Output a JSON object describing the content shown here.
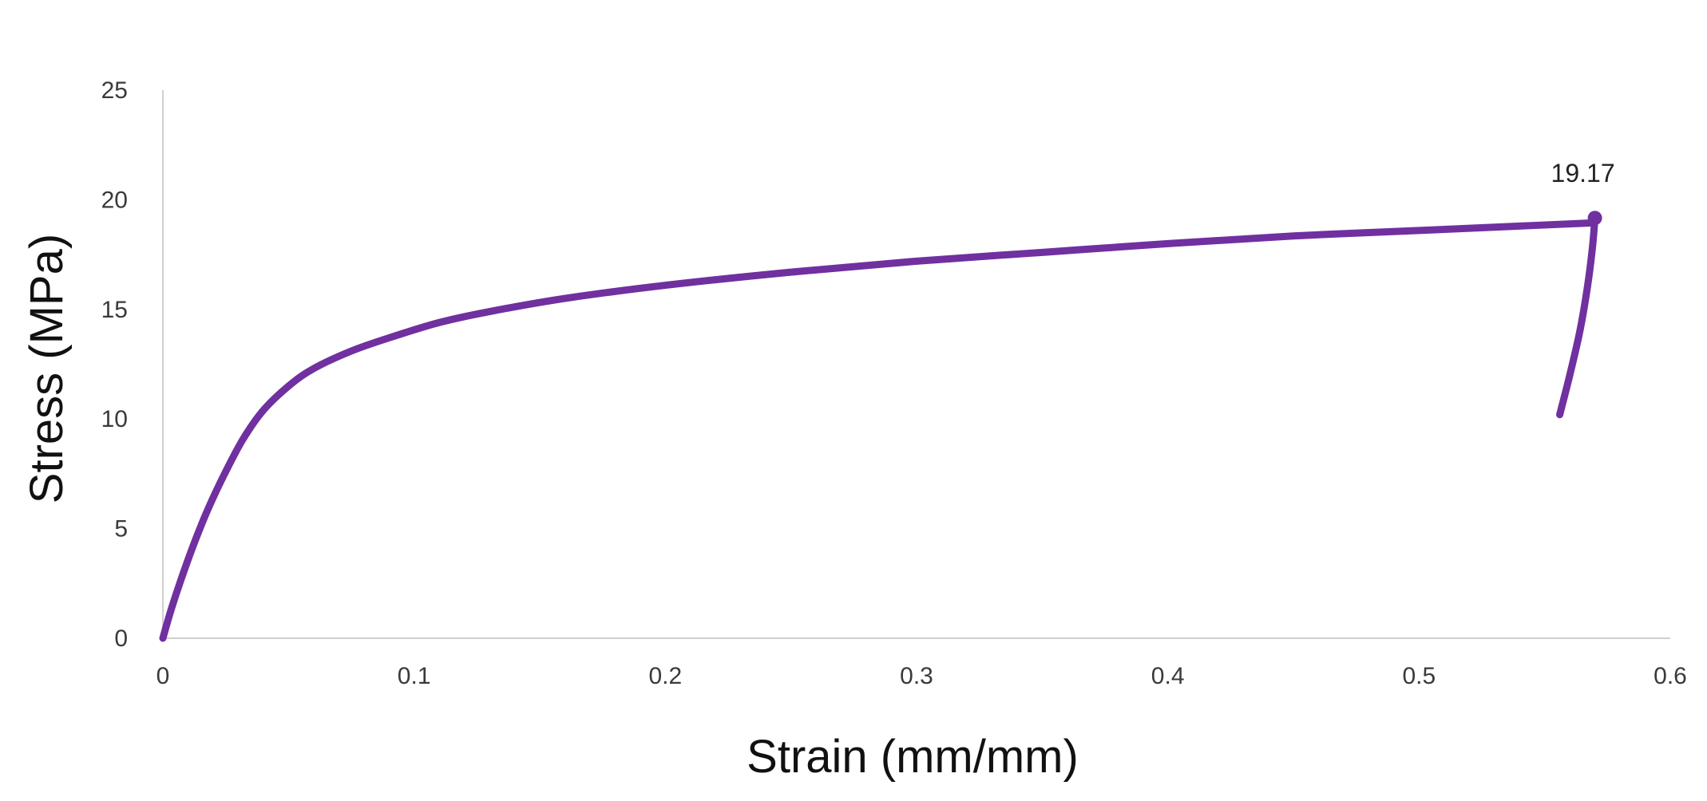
{
  "chart_data": {
    "type": "line",
    "xlabel": "Strain (mm/mm)",
    "ylabel": "Stress (MPa)",
    "xlim": [
      0,
      0.6
    ],
    "ylim": [
      0,
      25
    ],
    "x_ticks": [
      "0",
      "0.1",
      "0.2",
      "0.3",
      "0.4",
      "0.5",
      "0.6"
    ],
    "y_ticks": [
      "0",
      "5",
      "10",
      "15",
      "20",
      "25"
    ],
    "grid": false,
    "legend": "none",
    "series": [
      {
        "color": "#7030A0",
        "points": [
          [
            0.0,
            0.0
          ],
          [
            0.003,
            1.2
          ],
          [
            0.007,
            2.6
          ],
          [
            0.012,
            4.2
          ],
          [
            0.018,
            5.9
          ],
          [
            0.025,
            7.6
          ],
          [
            0.032,
            9.1
          ],
          [
            0.04,
            10.4
          ],
          [
            0.05,
            11.5
          ],
          [
            0.06,
            12.3
          ],
          [
            0.075,
            13.1
          ],
          [
            0.09,
            13.7
          ],
          [
            0.11,
            14.4
          ],
          [
            0.13,
            14.9
          ],
          [
            0.16,
            15.5
          ],
          [
            0.2,
            16.1
          ],
          [
            0.25,
            16.7
          ],
          [
            0.3,
            17.2
          ],
          [
            0.35,
            17.6
          ],
          [
            0.4,
            18.0
          ],
          [
            0.45,
            18.35
          ],
          [
            0.5,
            18.6
          ],
          [
            0.54,
            18.8
          ],
          [
            0.57,
            18.95
          ]
        ]
      },
      {
        "color": "#7030A0",
        "points": [
          [
            0.556,
            10.2
          ],
          [
            0.56,
            12.0
          ],
          [
            0.564,
            14.0
          ],
          [
            0.567,
            16.0
          ],
          [
            0.569,
            17.8
          ],
          [
            0.57,
            19.17
          ]
        ]
      }
    ],
    "annotations": [
      {
        "text": "19.17",
        "x": 0.57,
        "y": 19.17
      }
    ]
  }
}
